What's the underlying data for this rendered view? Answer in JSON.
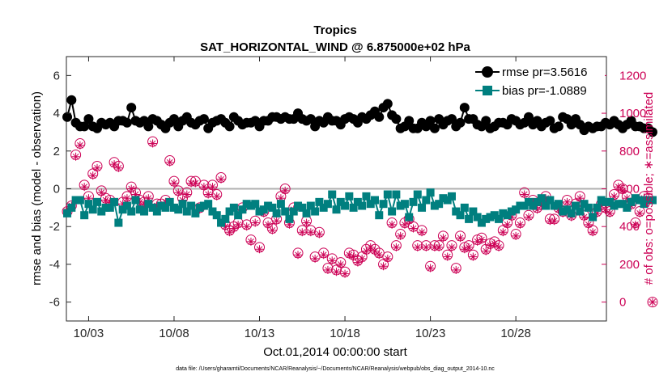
{
  "chart_data": {
    "type": "line",
    "title": "Tropics",
    "subtitle": "SAT_HORIZONTAL_WIND @ 6.875000e+02 hPa",
    "xlabel": "Oct.01,2014 00:00:00 start",
    "ylabel_left": "rmse and bias (model - observation)",
    "ylabel_right": "# of obs: o=possible; ∗=assimilated",
    "x_range_days": [
      0.7,
      32.3
    ],
    "ylim_left": [
      -7,
      7
    ],
    "ylim_right": [
      -100,
      1300
    ],
    "x_ticks": [
      {
        "day": 2,
        "label": "10/03"
      },
      {
        "day": 7,
        "label": "10/08"
      },
      {
        "day": 12,
        "label": "10/13"
      },
      {
        "day": 17,
        "label": "10/18"
      },
      {
        "day": 22,
        "label": "10/23"
      },
      {
        "day": 27,
        "label": "10/28"
      }
    ],
    "y_ticks_left": [
      {
        "v": 6,
        "label": "6"
      },
      {
        "v": 4,
        "label": "4"
      },
      {
        "v": 2,
        "label": "2"
      },
      {
        "v": 0,
        "label": "0"
      },
      {
        "v": -2,
        "label": "-2"
      },
      {
        "v": -4,
        "label": "-4"
      },
      {
        "v": -6,
        "label": "-6"
      }
    ],
    "y_ticks_right": [
      {
        "v": 0,
        "label": "0"
      },
      {
        "v": 200,
        "label": "200"
      },
      {
        "v": 400,
        "label": "400"
      },
      {
        "v": 600,
        "label": "600"
      },
      {
        "v": 800,
        "label": "800"
      },
      {
        "v": 1000,
        "label": "1000"
      },
      {
        "v": 1200,
        "label": "1200"
      }
    ],
    "x_start": 0.75,
    "x_step": 0.25,
    "series": [
      {
        "name": "rmse pr=3.5616",
        "axis": "left",
        "color": "#000000",
        "marker": "circle",
        "values": [
          3.8,
          4.7,
          3.5,
          3.3,
          3.3,
          3.7,
          3.3,
          3.2,
          3.5,
          3.4,
          3.5,
          3.3,
          3.6,
          3.6,
          3.5,
          4.3,
          3.6,
          3.5,
          3.6,
          3.3,
          3.7,
          3.6,
          3.4,
          3.2,
          3.5,
          3.7,
          3.3,
          3.6,
          3.8,
          3.5,
          3.4,
          3.6,
          3.7,
          3.2,
          3.5,
          3.6,
          3.7,
          3.5,
          3.3,
          3.8,
          3.6,
          3.4,
          3.5,
          3.5,
          3.6,
          3.3,
          3.6,
          3.6,
          3.8,
          3.8,
          3.7,
          3.8,
          3.7,
          3.7,
          4.0,
          3.7,
          3.6,
          3.7,
          3.3,
          3.6,
          3.5,
          3.8,
          3.6,
          3.6,
          3.4,
          3.7,
          3.8,
          3.7,
          3.5,
          3.8,
          3.7,
          3.9,
          4.1,
          3.8,
          4.3,
          4.5,
          3.9,
          3.7,
          3.2,
          3.3,
          3.6,
          3.2,
          3.2,
          3.5,
          3.3,
          3.6,
          3.2,
          3.7,
          3.4,
          3.6,
          3.7,
          3.3,
          3.5,
          4.3,
          3.7,
          3.7,
          3.4,
          3.3,
          3.6,
          3.2,
          3.3,
          3.5,
          3.5,
          3.4,
          3.7,
          3.6,
          3.4,
          3.5,
          3.8,
          3.4,
          3.6,
          3.3,
          3.5,
          3.6,
          3.2,
          3.3,
          3.8,
          3.7,
          3.4,
          3.7,
          3.4,
          3.1,
          3.3,
          3.2,
          3.3,
          3.3,
          3.5,
          3.4,
          3.6,
          3.4,
          3.2,
          3.4,
          3.6,
          3.3,
          3.3,
          3.2,
          3.2,
          3.0
        ]
      },
      {
        "name": "bias pr=-1.0889",
        "axis": "left",
        "color": "#007f7f",
        "marker": "square",
        "values": [
          -1.3,
          -1.0,
          -0.6,
          -0.6,
          -1.4,
          -0.8,
          -1.1,
          -0.7,
          -1.2,
          -1.0,
          -1.0,
          -0.7,
          -1.8,
          -1.1,
          -0.9,
          -1.2,
          -0.6,
          -1.1,
          -1.2,
          -0.8,
          -1.0,
          -1.2,
          -0.9,
          -1.0,
          -0.7,
          -1.0,
          -1.1,
          -0.8,
          -1.2,
          -0.9,
          -1.3,
          -1.0,
          -0.9,
          -0.8,
          -1.2,
          -1.4,
          -1.8,
          -1.6,
          -1.2,
          -1.0,
          -1.4,
          -1.1,
          -0.8,
          -0.9,
          -0.8,
          -1.2,
          -1.1,
          -0.9,
          -1.0,
          -1.3,
          -0.8,
          -1.2,
          -1.6,
          -1.2,
          -0.9,
          -1.0,
          -1.3,
          -0.9,
          -1.2,
          -0.7,
          -1.0,
          -0.8,
          -0.3,
          -1.1,
          -0.7,
          -0.9,
          -0.4,
          -1.0,
          -0.7,
          -0.9,
          -0.4,
          -0.8,
          -0.6,
          -1.4,
          -0.8,
          -0.3,
          -1.2,
          -0.3,
          -0.9,
          -0.8,
          -1.5,
          -0.7,
          -0.3,
          -1.0,
          -0.6,
          -0.2,
          -0.9,
          -0.8,
          -0.5,
          -0.6,
          -0.4,
          -1.2,
          -1.4,
          -1.0,
          -1.6,
          -1.2,
          -1.5,
          -1.8,
          -1.6,
          -1.5,
          -1.4,
          -1.6,
          -1.3,
          -1.4,
          -1.2,
          -1.1,
          -0.9,
          -0.9,
          -0.7,
          -0.9,
          -0.7,
          -0.5,
          -0.9,
          -0.6,
          -0.9,
          -0.8,
          -1.2,
          -1.1,
          -1.3,
          -0.9,
          -1.2,
          -0.8,
          -1.0,
          -1.5,
          -1.0,
          -0.6,
          -0.7,
          -0.7,
          -0.9,
          -0.8,
          -0.8,
          -1.0,
          -0.7,
          -0.5,
          -0.6,
          -0.8,
          -0.6,
          -0.6
        ]
      },
      {
        "name": "possible",
        "axis": "right",
        "color": "#cc0055",
        "marker": "circle-open",
        "values": [
          480,
          510,
          780,
          840,
          620,
          560,
          680,
          720,
          590,
          550,
          540,
          740,
          720,
          530,
          560,
          610,
          580,
          540,
          530,
          560,
          850,
          520,
          520,
          540,
          750,
          640,
          590,
          550,
          580,
          640,
          640,
          500,
          620,
          580,
          620,
          570,
          660,
          410,
          380,
          400,
          420,
          500,
          410,
          330,
          430,
          290,
          480,
          420,
          390,
          440,
          560,
          600,
          420,
          500,
          260,
          380,
          430,
          380,
          240,
          370,
          260,
          180,
          230,
          170,
          210,
          160,
          260,
          250,
          220,
          240,
          280,
          300,
          280,
          260,
          200,
          240,
          420,
          300,
          360,
          420,
          440,
          400,
          300,
          380,
          300,
          190,
          300,
          300,
          350,
          250,
          300,
          180,
          350,
          290,
          300,
          250,
          330,
          340,
          280,
          310,
          320,
          300,
          380,
          420,
          460,
          360,
          420,
          580,
          460,
          540,
          500,
          520,
          560,
          440,
          440,
          500,
          480,
          540,
          460,
          520,
          560,
          460,
          420,
          380,
          480,
          520,
          500,
          480,
          570,
          620,
          600,
          560,
          520,
          420,
          480,
          560,
          550,
          0
        ]
      },
      {
        "name": "assimilated",
        "axis": "right",
        "color": "#cc0055",
        "marker": "asterisk",
        "values": [
          480,
          510,
          770,
          830,
          610,
          550,
          670,
          710,
          580,
          540,
          530,
          730,
          710,
          520,
          550,
          600,
          570,
          530,
          520,
          550,
          840,
          510,
          510,
          530,
          740,
          630,
          580,
          540,
          570,
          630,
          630,
          490,
          610,
          570,
          610,
          560,
          650,
          400,
          370,
          390,
          410,
          490,
          400,
          320,
          420,
          280,
          470,
          410,
          380,
          430,
          550,
          590,
          410,
          490,
          250,
          370,
          420,
          370,
          230,
          360,
          250,
          170,
          220,
          160,
          200,
          150,
          250,
          240,
          210,
          230,
          270,
          290,
          270,
          250,
          190,
          230,
          410,
          290,
          350,
          410,
          430,
          390,
          290,
          370,
          290,
          180,
          290,
          290,
          340,
          240,
          290,
          170,
          340,
          280,
          290,
          240,
          320,
          330,
          270,
          300,
          310,
          290,
          370,
          410,
          450,
          350,
          410,
          570,
          450,
          530,
          490,
          510,
          550,
          430,
          430,
          490,
          470,
          530,
          450,
          510,
          550,
          450,
          410,
          370,
          470,
          510,
          490,
          470,
          560,
          610,
          590,
          550,
          510,
          410,
          470,
          550,
          540,
          0
        ]
      }
    ]
  },
  "footer": "data file: /Users/gharamti/Documents/NCAR/Reanalysis/~/Documents/NCAR/Reanalysis/webpub/obs_diag_output_2014-10.nc"
}
